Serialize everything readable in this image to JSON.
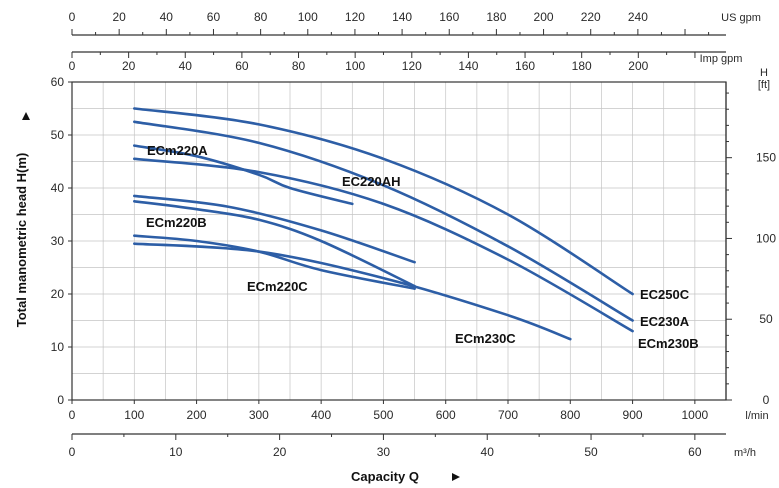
{
  "chart_data": {
    "type": "line",
    "xlabel": "Capacity Q",
    "ylabel": "Total manometric head H(m)",
    "xlim": [
      0,
      1050
    ],
    "ylim": [
      0,
      60
    ],
    "grid": true,
    "x_unit": "l/min",
    "axes": {
      "x_lmin": {
        "unit": "l/min",
        "ticks": [
          0,
          100,
          200,
          300,
          400,
          500,
          600,
          700,
          800,
          900,
          1000
        ]
      },
      "x_m3h": {
        "unit": "m³/h",
        "ticks": [
          0,
          10,
          20,
          30,
          40,
          50,
          60
        ]
      },
      "x_usgpm": {
        "unit": "US gpm",
        "ticks": [
          0,
          20,
          40,
          60,
          80,
          100,
          120,
          140,
          160,
          180,
          200,
          220,
          240
        ]
      },
      "x_impgpm": {
        "unit": "Imp gpm",
        "ticks": [
          0,
          20,
          40,
          60,
          80,
          100,
          120,
          140,
          160,
          180,
          200
        ]
      },
      "y_m": {
        "ticks": [
          0,
          10,
          20,
          30,
          40,
          50,
          60
        ]
      },
      "y_ft": {
        "unit": "H\n[ft]",
        "unit_lines": [
          "H",
          "[ft]"
        ],
        "ticks": [
          0,
          50,
          100,
          150
        ]
      }
    },
    "series": [
      {
        "name": "EC250C",
        "x": [
          100,
          300,
          500,
          700,
          900
        ],
        "y": [
          55,
          52,
          45.5,
          35,
          20
        ]
      },
      {
        "name": "EC230A",
        "x": [
          100,
          300,
          500,
          700,
          900
        ],
        "y": [
          52.5,
          48.5,
          40.5,
          29,
          15
        ]
      },
      {
        "name": "ECm230B",
        "x": [
          100,
          300,
          500,
          700,
          900
        ],
        "y": [
          45.5,
          43,
          37,
          26.5,
          13
        ]
      },
      {
        "name": "ECm220A",
        "x": [
          100,
          200,
          300,
          350,
          450
        ],
        "y": [
          48,
          46,
          42.5,
          40,
          37
        ]
      },
      {
        "name": "EC220AH",
        "x": [
          100,
          250,
          400,
          550
        ],
        "y": [
          38.5,
          36.5,
          32,
          26
        ]
      },
      {
        "name": "ECm220B",
        "x": [
          100,
          200,
          300,
          400,
          550
        ],
        "y": [
          37.5,
          36,
          34,
          30,
          21.5
        ]
      },
      {
        "name": "ECm220C",
        "x": [
          100,
          200,
          300,
          400,
          550
        ],
        "y": [
          31,
          30,
          28,
          24.5,
          21
        ]
      },
      {
        "name": "ECm230C",
        "x": [
          100,
          300,
          500,
          700,
          800
        ],
        "y": [
          29.5,
          28,
          23,
          16,
          11.5
        ]
      }
    ],
    "colors": {
      "curve": "#2d5ea6",
      "grid": "#c4c4c4",
      "axis": "#333333"
    }
  }
}
